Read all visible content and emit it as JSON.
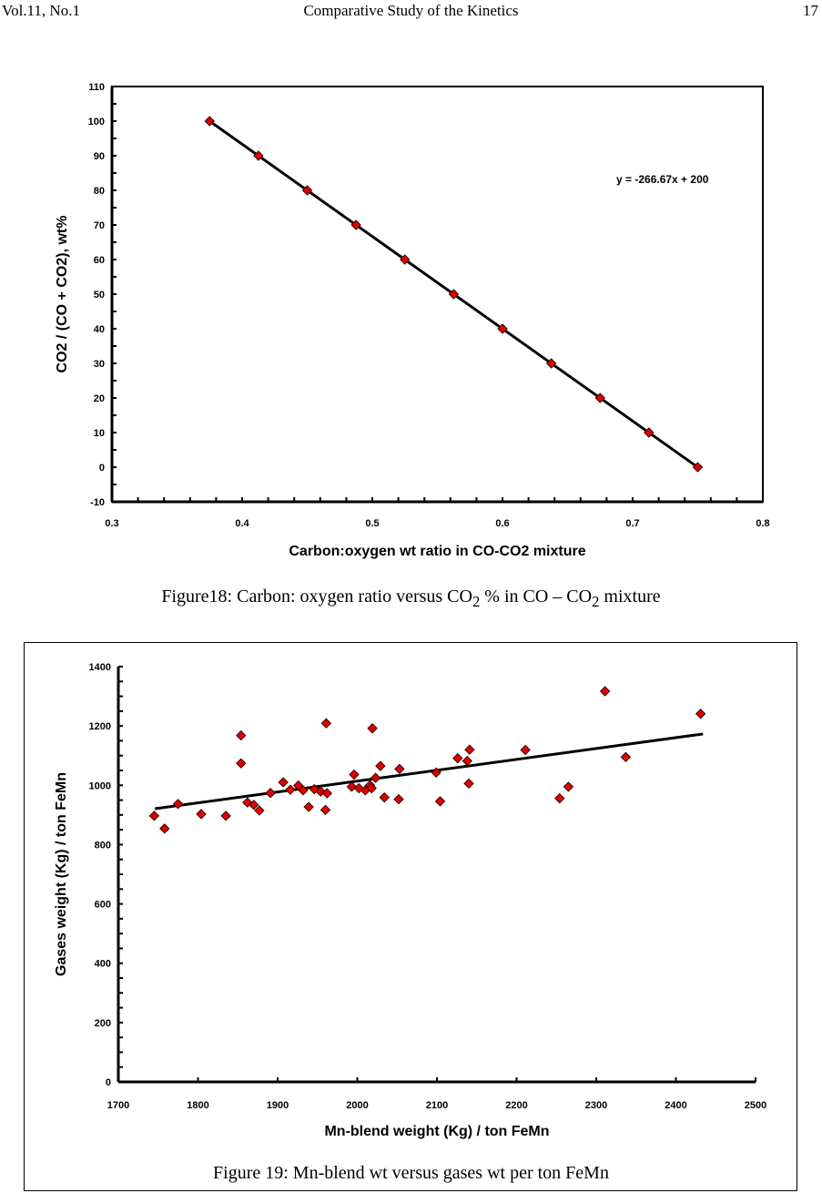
{
  "header": {
    "left": "Vol.11, No.1",
    "center": "Comparative Study of the Kinetics",
    "page_number": "17"
  },
  "figure18_caption": {
    "p1": "Figure18: Carbon: oxygen ratio versus CO",
    "s1": "2",
    "p2": " % in CO – CO",
    "s2": "2",
    "p3": " mixture"
  },
  "figure19_caption": {
    "text": "Figure 19: Mn-blend wt versus gases wt per ton FeMn"
  },
  "colors": {
    "marker": "#e00000",
    "marker_edge": "#3a0000",
    "line": "#000000"
  },
  "chart_data": [
    {
      "type": "scatter",
      "xlabel": "Carbon:oxygen wt ratio in CO-CO2 mixture",
      "ylabel": "CO2 / (CO + CO2), wt%",
      "xlim": [
        0.3,
        0.8
      ],
      "ylim": [
        -10,
        110
      ],
      "xticks": [
        "0.3",
        "0.4",
        "0.5",
        "0.6",
        "0.7",
        "0.8"
      ],
      "yticks": [
        "-10",
        "0",
        "10",
        "20",
        "30",
        "40",
        "50",
        "60",
        "70",
        "80",
        "90",
        "100",
        "110"
      ],
      "grid": false,
      "marker": "diamond",
      "annotation": "y = -266.67x + 200",
      "trendline": {
        "slope": -266.67,
        "intercept": 200
      },
      "x": [
        0.375,
        0.4125,
        0.45,
        0.4875,
        0.525,
        0.5625,
        0.6,
        0.6375,
        0.675,
        0.7125,
        0.75
      ],
      "y": [
        100,
        90,
        80,
        70,
        60,
        50,
        40,
        30,
        20,
        10,
        0
      ]
    },
    {
      "type": "scatter",
      "xlabel": "Mn-blend weight (Kg) / ton FeMn",
      "ylabel": "Gases weight (Kg) / ton FeMn",
      "xlim": [
        1700,
        2500
      ],
      "ylim": [
        0,
        1400
      ],
      "xticks": [
        "1700",
        "1800",
        "1900",
        "2000",
        "2100",
        "2200",
        "2300",
        "2400",
        "2500"
      ],
      "yticks": [
        "0",
        "200",
        "400",
        "600",
        "800",
        "1000",
        "1200",
        "1400"
      ],
      "grid": false,
      "marker": "diamond",
      "trendline": {
        "x": [
          1746,
          2434
        ],
        "y": [
          921,
          1173
        ]
      },
      "x": [
        1745,
        1758,
        1775,
        1804,
        1835,
        1854,
        1854,
        1862,
        1870,
        1877,
        1891,
        1907,
        1916,
        1926,
        1932,
        1939,
        1946,
        1954,
        1961,
        1962,
        1960,
        1996,
        1993,
        2002,
        2010,
        2016,
        2018,
        2019,
        2023,
        2029,
        2034,
        2053,
        2052,
        2099,
        2104,
        2126,
        2138,
        2141,
        2140,
        2211,
        2254,
        2265,
        2311,
        2337,
        2431
      ],
      "y": [
        897,
        854,
        937,
        903,
        897,
        1168,
        1074,
        942,
        934,
        915,
        974,
        1010,
        985,
        999,
        983,
        927,
        987,
        979,
        1209,
        973,
        917,
        1036,
        995,
        990,
        983,
        1000,
        990,
        1192,
        1025,
        1065,
        959,
        1055,
        953,
        1043,
        946,
        1091,
        1082,
        1120,
        1006,
        1119,
        956,
        995,
        1317,
        1095,
        1241
      ]
    }
  ]
}
